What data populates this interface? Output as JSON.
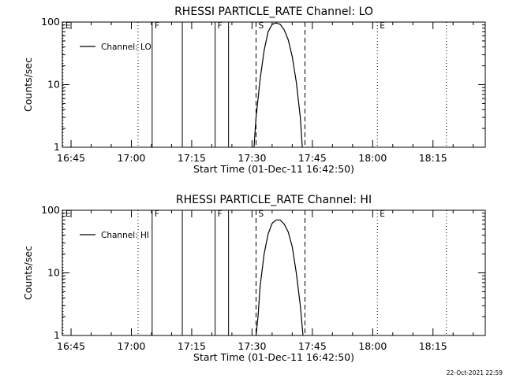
{
  "timestamp": "22-Oct-2021 22:59",
  "chart_data": [
    {
      "type": "line",
      "title": "RHESSI PARTICLE_RATE Channel: LO",
      "xlabel": "Start Time (01-Dec-11 16:42:50)",
      "ylabel": "Counts/sec",
      "yscale": "log",
      "ylim": [
        1,
        100
      ],
      "ytick_labels": [
        "1",
        "10",
        "100"
      ],
      "xlim": [
        "16:42:50",
        "18:28:00"
      ],
      "xtick_labels": [
        "16:45",
        "17:00",
        "17:15",
        "17:30",
        "17:45",
        "18:00",
        "18:15"
      ],
      "legend": {
        "position": "top-left",
        "label": "Channel: LO"
      },
      "grid": false,
      "series": [
        {
          "name": "Channel: LO",
          "x": [
            "17:30:30",
            "17:31",
            "17:32",
            "17:33",
            "17:34",
            "17:35",
            "17:36",
            "17:37",
            "17:38",
            "17:39",
            "17:40",
            "17:41",
            "17:42",
            "17:42:30"
          ],
          "y": [
            1,
            3,
            12,
            35,
            70,
            92,
            97,
            92,
            75,
            52,
            28,
            11,
            3,
            1
          ]
        }
      ],
      "event_markers": [
        {
          "time": "16:43:00",
          "style": "dotted",
          "label": "E"
        },
        {
          "time": "17:01:40",
          "style": "dotted",
          "label": ""
        },
        {
          "time": "17:05:10",
          "style": "solid",
          "label": "F"
        },
        {
          "time": "17:12:40",
          "style": "solid",
          "label": ""
        },
        {
          "time": "17:20:50",
          "style": "solid",
          "label": "F"
        },
        {
          "time": "17:24:10",
          "style": "solid",
          "label": ""
        },
        {
          "time": "17:31:00",
          "style": "dashed",
          "label": "S"
        },
        {
          "time": "17:43:10",
          "style": "dashed",
          "label": ""
        },
        {
          "time": "18:01:10",
          "style": "dotted",
          "label": "E"
        },
        {
          "time": "18:18:20",
          "style": "dotted",
          "label": ""
        }
      ]
    },
    {
      "type": "line",
      "title": "RHESSI PARTICLE_RATE Channel: HI",
      "xlabel": "Start Time (01-Dec-11 16:42:50)",
      "ylabel": "Counts/sec",
      "yscale": "log",
      "ylim": [
        1,
        100
      ],
      "ytick_labels": [
        "1",
        "10",
        "100"
      ],
      "xlim": [
        "16:42:50",
        "18:28:00"
      ],
      "xtick_labels": [
        "16:45",
        "17:00",
        "17:15",
        "17:30",
        "17:45",
        "18:00",
        "18:15"
      ],
      "legend": {
        "position": "top-left",
        "label": "Channel: HI"
      },
      "grid": false,
      "series": [
        {
          "name": "Channel: HI",
          "x": [
            "17:31:00",
            "17:31:30",
            "17:32",
            "17:33",
            "17:34",
            "17:35",
            "17:36",
            "17:37",
            "17:38",
            "17:39",
            "17:40",
            "17:41",
            "17:42",
            "17:42:40"
          ],
          "y": [
            1,
            2,
            6,
            20,
            42,
            62,
            70,
            70,
            60,
            45,
            26,
            10,
            3,
            1
          ]
        }
      ],
      "event_markers": [
        {
          "time": "16:43:00",
          "style": "dotted",
          "label": "E"
        },
        {
          "time": "17:01:40",
          "style": "dotted",
          "label": ""
        },
        {
          "time": "17:05:10",
          "style": "solid",
          "label": "F"
        },
        {
          "time": "17:12:40",
          "style": "solid",
          "label": ""
        },
        {
          "time": "17:20:50",
          "style": "solid",
          "label": "F"
        },
        {
          "time": "17:24:10",
          "style": "solid",
          "label": ""
        },
        {
          "time": "17:31:00",
          "style": "dashed",
          "label": "S"
        },
        {
          "time": "17:43:10",
          "style": "dashed",
          "label": ""
        },
        {
          "time": "18:01:10",
          "style": "dotted",
          "label": "E"
        },
        {
          "time": "18:18:20",
          "style": "dotted",
          "label": ""
        }
      ]
    }
  ]
}
